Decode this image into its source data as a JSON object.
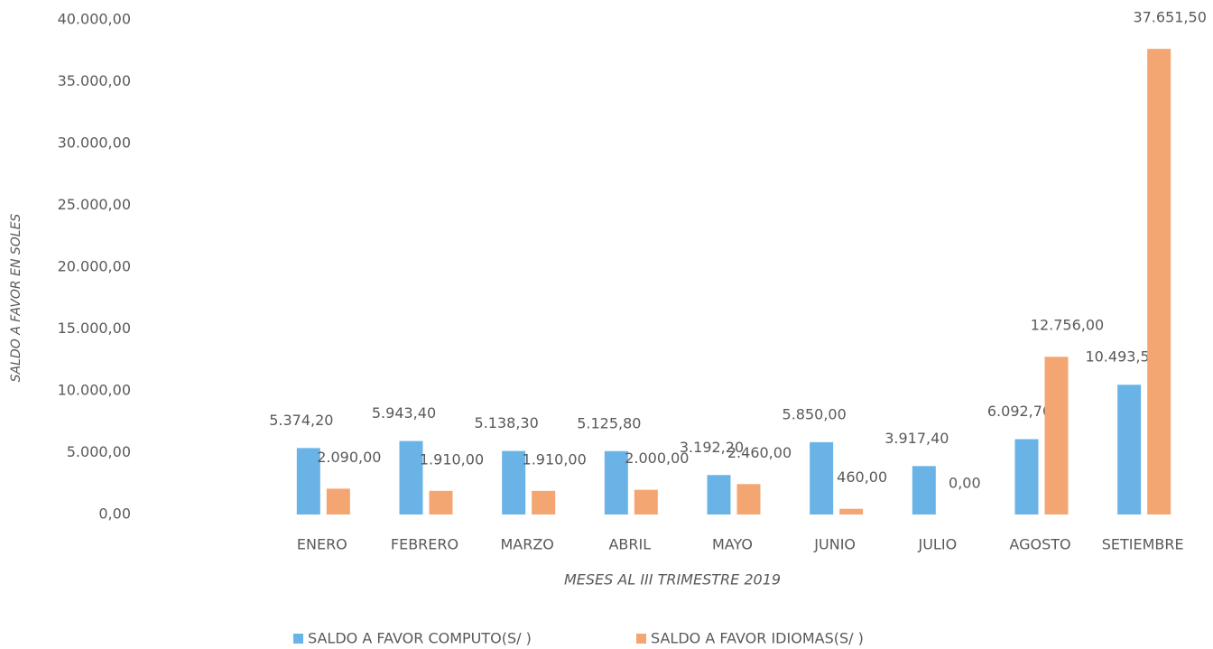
{
  "chart_data": {
    "type": "bar",
    "ylabel": "SALDO A FAVOR EN SOLES",
    "xlabel": "MESES AL III TRIMESTRE 2019",
    "categories": [
      "ENERO",
      "FEBRERO",
      "MARZO",
      "ABRIL",
      "MAYO",
      "JUNIO",
      "JULIO",
      "AGOSTO",
      "SETIEMBRE"
    ],
    "series": [
      {
        "name": "SALDO A FAVOR COMPUTO(S/ )",
        "color": "#6ab3e6",
        "values": [
          5374.2,
          5943.4,
          5138.3,
          5125.8,
          3192.2,
          5850,
          3917.4,
          6092.7,
          10493.5
        ],
        "value_labels": [
          "5.374,20",
          "5.943,40",
          "5.138,30",
          "5.125,80",
          "3.192,20",
          "5.850,00",
          "3.917,40",
          "6.092,70",
          "10.493,50"
        ]
      },
      {
        "name": "SALDO A FAVOR IDIOMAS(S/ )",
        "color": "#f4a672",
        "values": [
          2090,
          1910,
          1910,
          2000,
          2460,
          460,
          0,
          12756,
          37651.5
        ],
        "value_labels": [
          "2.090,00",
          "1.910,00",
          "1.910,00",
          "2.000,00",
          "2.460,00",
          "460,00",
          "0,00",
          "12.756,00",
          "37.651,50"
        ]
      }
    ],
    "ylim": [
      0,
      40000
    ],
    "yticks": [
      {
        "value": 0,
        "label": "0,00"
      },
      {
        "value": 5000,
        "label": "5.000,00"
      },
      {
        "value": 10000,
        "label": "10.000,00"
      },
      {
        "value": 15000,
        "label": "15.000,00"
      },
      {
        "value": 20000,
        "label": "20.000,00"
      },
      {
        "value": 25000,
        "label": "25.000,00"
      },
      {
        "value": 30000,
        "label": "30.000,00"
      },
      {
        "value": 35000,
        "label": "35.000,00"
      },
      {
        "value": 40000,
        "label": "40.000,00"
      }
    ],
    "legend": "bottom"
  }
}
